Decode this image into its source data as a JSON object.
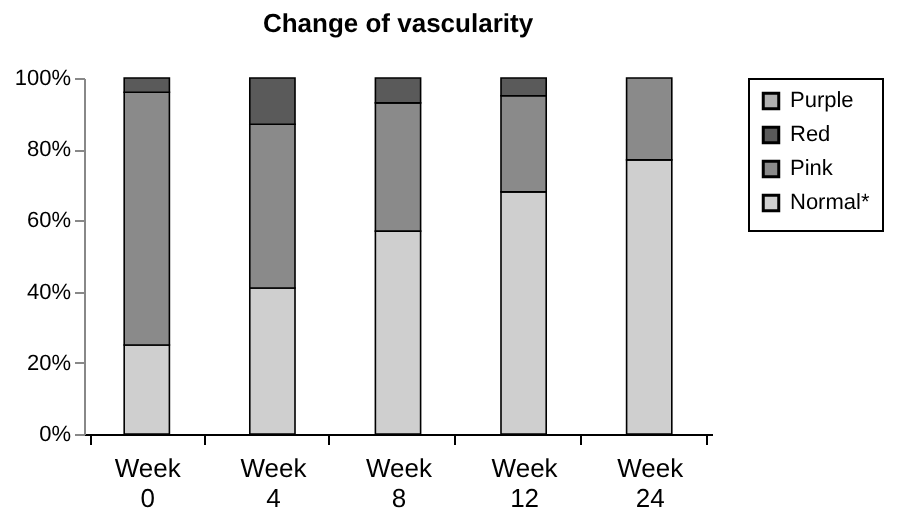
{
  "chart_data": {
    "type": "bar",
    "title": "Change of vascularity",
    "stacked": true,
    "categories": [
      "Week 0",
      "Week 4",
      "Week 8",
      "Week 12",
      "Week 24"
    ],
    "series": [
      {
        "name": "Normal*",
        "color": "#cfcfcf",
        "values": [
          25,
          41,
          57,
          68,
          77
        ]
      },
      {
        "name": "Pink",
        "color": "#8a8a8a",
        "values": [
          71,
          46,
          36,
          27,
          23
        ]
      },
      {
        "name": "Red",
        "color": "#5a5a5a",
        "values": [
          4,
          13,
          7,
          5,
          0
        ]
      },
      {
        "name": "Purple",
        "color": "#b0b0b0",
        "values": [
          0,
          0,
          0,
          0,
          0
        ]
      }
    ],
    "ylim": [
      0,
      100
    ],
    "yticks": [
      {
        "value": 0,
        "label": "0%"
      },
      {
        "value": 20,
        "label": "20%"
      },
      {
        "value": 40,
        "label": "40%"
      },
      {
        "value": 60,
        "label": "60%"
      },
      {
        "value": 80,
        "label": "80%"
      },
      {
        "value": 100,
        "label": "100%"
      }
    ],
    "grid": false,
    "legend": "right"
  }
}
